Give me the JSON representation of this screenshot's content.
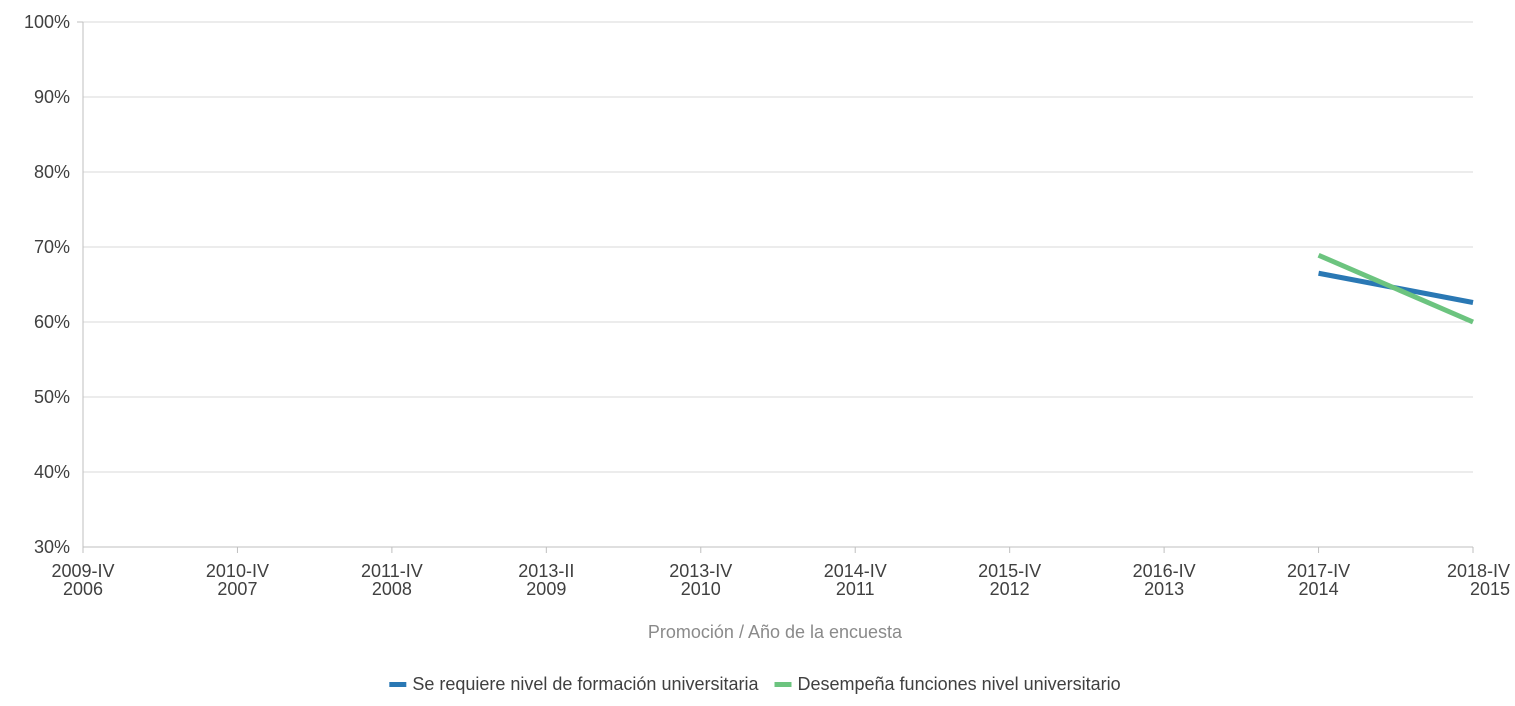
{
  "chart_data": {
    "type": "line",
    "title": "",
    "xlabel": "Promoción / Año de la encuesta",
    "ylabel": "",
    "ylim": [
      30,
      100
    ],
    "yticks": [
      "30%",
      "40%",
      "50%",
      "60%",
      "70%",
      "80%",
      "90%",
      "100%"
    ],
    "categories": [
      [
        "2009-IV",
        "2006"
      ],
      [
        "2010-IV",
        "2007"
      ],
      [
        "2011-IV",
        "2008"
      ],
      [
        "2013-II",
        "2009"
      ],
      [
        "2013-IV",
        "2010"
      ],
      [
        "2014-IV",
        "2011"
      ],
      [
        "2015-IV",
        "2012"
      ],
      [
        "2016-IV",
        "2013"
      ],
      [
        "2017-IV",
        "2014"
      ],
      [
        "2018-IV",
        "2015"
      ]
    ],
    "grid": true,
    "legend_position": "bottom",
    "series": [
      {
        "name": "Se requiere nivel de formación universitaria",
        "color": "#2a78b4",
        "values": [
          null,
          null,
          null,
          null,
          null,
          null,
          null,
          null,
          66.5,
          62.6
        ]
      },
      {
        "name": "Desempeña funciones nivel universitario",
        "color": "#6cc47f",
        "values": [
          null,
          null,
          null,
          null,
          null,
          null,
          null,
          null,
          68.9,
          60.0
        ]
      }
    ]
  }
}
